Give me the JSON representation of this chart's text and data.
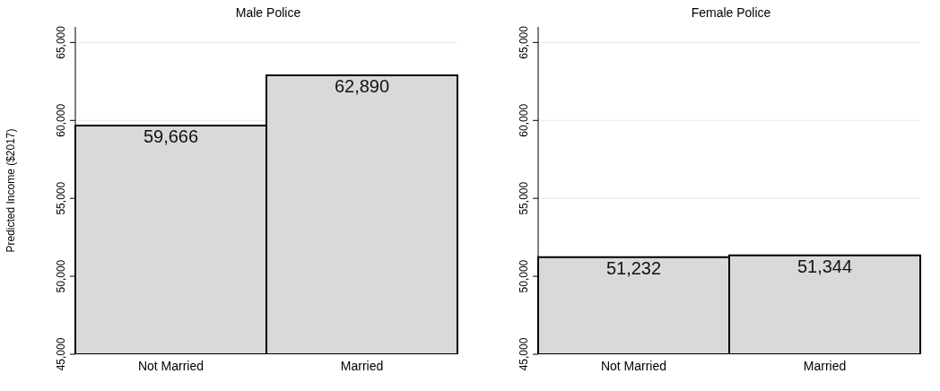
{
  "chart_data": [
    {
      "type": "bar",
      "title": "Male Police",
      "ylabel": "Predicted Income ($2017)",
      "categories": [
        "Not Married",
        "Married"
      ],
      "values": [
        59666,
        62890
      ],
      "value_labels": [
        "59,666",
        "62,890"
      ],
      "color": "#d9d9d9",
      "ylim": [
        45000,
        66000
      ],
      "yticks": [
        {
          "value": 45000,
          "label": "45,000"
        },
        {
          "value": 50000,
          "label": "50,000"
        },
        {
          "value": 55000,
          "label": "55,000"
        },
        {
          "value": 60000,
          "label": "60,000"
        },
        {
          "value": 65000,
          "label": "65,000"
        }
      ],
      "grid": "y"
    },
    {
      "type": "bar",
      "title": "Female Police",
      "categories": [
        "Not Married",
        "Married"
      ],
      "values": [
        51232,
        51344
      ],
      "value_labels": [
        "51,232",
        "51,344"
      ],
      "color": "#d9d9d9",
      "ylim": [
        45000,
        66000
      ],
      "yticks": [
        {
          "value": 45000,
          "label": "45,000"
        },
        {
          "value": 50000,
          "label": "50,000"
        },
        {
          "value": 55000,
          "label": "55,000"
        },
        {
          "value": 60000,
          "label": "60,000"
        },
        {
          "value": 65000,
          "label": "65,000"
        }
      ],
      "grid": "y"
    }
  ]
}
